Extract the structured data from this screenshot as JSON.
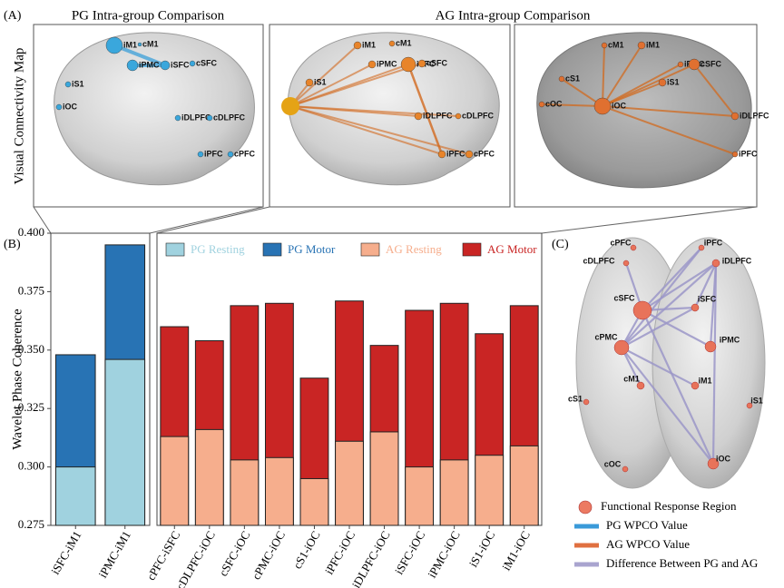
{
  "panel_labels": [
    "(A)",
    "(B)",
    "(C)"
  ],
  "panel_a": {
    "ylabel": "Visual Connectivity Map",
    "titles": [
      "PG Intra-group Comparison",
      "AG Intra-group Comparison"
    ],
    "maps": [
      {
        "nodes": [
          "iM1",
          "cM1",
          "iPMC",
          "iSFC",
          "cSFC",
          "iS1",
          "iOC",
          "iDLPFC",
          "cDLPFC",
          "iPFC",
          "cPFC"
        ]
      },
      {
        "nodes": [
          "iM1",
          "cM1",
          "iPMC",
          "iSFC",
          "cSFC",
          "iS1",
          "iDLPFC",
          "cDLPFC",
          "iPFC",
          "cPFC"
        ]
      },
      {
        "nodes": [
          "cM1",
          "iM1",
          "iPMC",
          "cSFC",
          "cS1",
          "iS1",
          "cOC",
          "iOC",
          "iDLPFC",
          "iPFC"
        ]
      }
    ]
  },
  "chart_data": [
    {
      "type": "bar",
      "ylabel": "Wavelet Phase Coherence",
      "categories": [
        "iSFC-iM1",
        "iPMC-iM1"
      ],
      "series": [
        {
          "name": "PG Resting",
          "color": "#a0d2df",
          "values": [
            0.3,
            0.346
          ]
        },
        {
          "name": "PG Motor",
          "color": "#2873b4",
          "values": [
            0.348,
            0.395
          ]
        }
      ],
      "ylim": [
        0.275,
        0.4
      ],
      "yticks": [
        0.275,
        {
          "value": 0.3,
          "label": "0.300"
        },
        0.325,
        {
          "value": 0.35,
          "label": "0.350"
        },
        0.375,
        {
          "value": 0.4,
          "label": "0.400"
        }
      ]
    },
    {
      "type": "bar",
      "categories": [
        "cPFC-iSFC",
        "cDLPFC-iOC",
        "cSFC-iOC",
        "cPMC-iOC",
        "cS1-iOC",
        "iPFC-iOC",
        "iDLPFC-iOC",
        "iSFC-iOC",
        "iPMC-iOC",
        "iS1-iOC",
        "iM1-iOC"
      ],
      "series": [
        {
          "name": "AG Resting",
          "color": "#f6ae8d",
          "values": [
            0.313,
            0.316,
            0.303,
            0.304,
            0.295,
            0.311,
            0.315,
            0.3,
            0.303,
            0.305,
            0.309
          ]
        },
        {
          "name": "AG Motor",
          "color": "#c92524",
          "values": [
            0.36,
            0.354,
            0.369,
            0.37,
            0.338,
            0.371,
            0.352,
            0.367,
            0.37,
            0.357,
            0.369
          ]
        }
      ],
      "ylim": [
        0.275,
        0.4
      ]
    }
  ],
  "panel_c": {
    "nodes": [
      "cPFC",
      "iPFC",
      "cDLPFC",
      "iDLPFC",
      "cSFC",
      "iSFC",
      "cPMC",
      "iPMC",
      "cM1",
      "iM1",
      "cS1",
      "iS1",
      "cOC",
      "iOC"
    ],
    "legend": [
      "Functional Response Region",
      "PG WPCO Value",
      "AG WPCO Value",
      "Difference Between PG and AG"
    ]
  }
}
